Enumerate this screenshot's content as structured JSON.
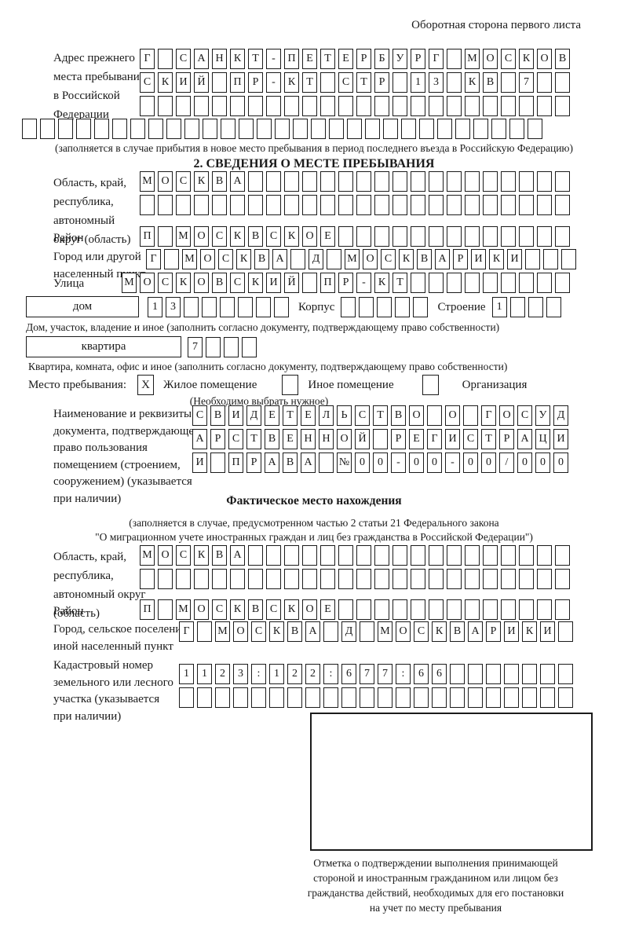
{
  "title": "Оборотная сторона первого листа",
  "colors": {
    "ink": "#1a1a1a",
    "paper": "#ffffff"
  },
  "prev_address": {
    "label": [
      "Адрес прежнего",
      "места пребывания",
      "в Российской",
      "Федерации"
    ],
    "rows": [
      {
        "text": "Г САНКТ-ПЕТЕРБУРГ МОСКОВ",
        "len": 24
      },
      {
        "text": "СКИЙ ПР-КТ СТР 13 КВ 7",
        "len": 24
      },
      {
        "text": "",
        "len": 24
      },
      {
        "text": "",
        "len": 29
      }
    ],
    "note": "(заполняется в случае прибытия в новое место пребывания в период последнего въезда в Российскую Федерацию)"
  },
  "section2": {
    "heading": "2. СВЕДЕНИЯ О МЕСТЕ ПРЕБЫВАНИЯ",
    "region": {
      "label": [
        "Область, край,",
        "республика,",
        "автономный",
        "округ (область)"
      ],
      "rows": [
        {
          "text": "МОСКВА",
          "len": 24
        },
        {
          "text": "",
          "len": 24
        }
      ]
    },
    "district": {
      "label": "Район",
      "row": {
        "text": "П МОСКВСКОЕ",
        "len": 24
      }
    },
    "city": {
      "label": [
        "Город или другой",
        "населенный пункт"
      ],
      "row": {
        "text": "Г МОСКВА Д МОСКВАРИКИ",
        "len": 24
      }
    },
    "street": {
      "label": "Улица",
      "row": {
        "text": "МОСКОВСКИЙ ПР-КТ",
        "len": 25
      }
    },
    "house": {
      "box_label": "дом",
      "cells": {
        "text": "13",
        "len": 8
      },
      "korpus_label": "Корпус",
      "korpus_cells": {
        "text": "",
        "len": 5
      },
      "stroenie_label": "Строение",
      "stroenie_cells": {
        "text": "1",
        "len": 4
      },
      "note": "Дом, участок, владение и иное (заполнить согласно документу, подтверждающему право собственности)"
    },
    "apartment": {
      "box_label": "квартира",
      "cells": {
        "text": "7",
        "len": 4
      },
      "note": "Квартира, комната, офис и иное (заполнить согласно документу, подтверждающему право собственности)"
    },
    "residence_type": {
      "label": "Место пребывания:",
      "options": [
        {
          "label": "Жилое помещение",
          "mark": "X"
        },
        {
          "label": "Иное помещение",
          "mark": ""
        },
        {
          "label": "Организация",
          "mark": ""
        }
      ],
      "note": "(Необходимо выбрать нужное)"
    },
    "document": {
      "label": [
        "Наименование и реквизиты",
        "документа, подтверждающего",
        "право пользования",
        "помещением (строением,",
        "сооружением) (указывается",
        "при наличии)"
      ],
      "rows": [
        {
          "text": "СВИДЕТЕЛЬСТВО О ГОСУД",
          "len": 21
        },
        {
          "text": "АРСТВЕННОЙ РЕГИСТРАЦИ",
          "len": 21
        },
        {
          "text": "И ПРАВА №00-00-00/000",
          "len": 21
        }
      ]
    }
  },
  "actual_location": {
    "heading": "Фактическое место нахождения",
    "note_lines": [
      "(заполняется в случае, предусмотренном частью 2 статьи 21 Федерального закона",
      "\"О миграционном учете иностранных граждан и лиц без гражданства в Российской Федерации\")"
    ],
    "region": {
      "label": [
        "Область, край,",
        "республика,",
        "автономный округ",
        "(область)"
      ],
      "rows": [
        {
          "text": "МОСКВА",
          "len": 24
        },
        {
          "text": "",
          "len": 24
        }
      ]
    },
    "district": {
      "label": "Район",
      "row": {
        "text": "П МОСКВСКОЕ",
        "len": 24
      }
    },
    "city": {
      "label": [
        "Город, сельское поселение,",
        "иной населенный пункт"
      ],
      "row": {
        "text": "Г МОСКВА Д МОСКВАРИКИ",
        "len": 22
      }
    },
    "cadastral": {
      "label": [
        "Кадастровый номер",
        "земельного или лесного",
        "участка (указывается",
        "при наличии)"
      ],
      "rows": [
        {
          "text": "1123:122:677:66",
          "len": 22
        },
        {
          "text": "",
          "len": 22
        }
      ]
    }
  },
  "stamp": {
    "caption_lines": [
      "Отметка о подтверждении выполнения принимающей",
      "стороной и иностранным гражданином или лицом без",
      "гражданства действий, необходимых для его постановки",
      "на учет по месту пребывания"
    ]
  }
}
